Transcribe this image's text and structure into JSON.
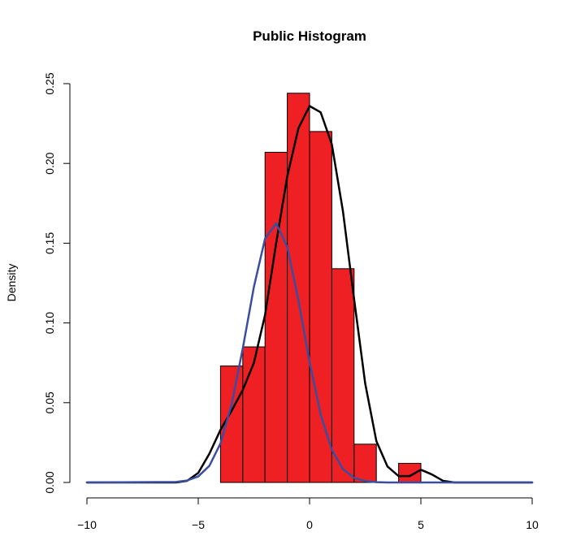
{
  "chart_data": {
    "type": "bar",
    "title": "Public Histogram",
    "xlabel": "",
    "ylabel": "Density",
    "xlim": [
      -10,
      10
    ],
    "ylim": [
      0,
      0.25
    ],
    "xticks": [
      -10,
      -5,
      0,
      5,
      10
    ],
    "xtick_labels": [
      "−10",
      "−5",
      "0",
      "5",
      "10"
    ],
    "yticks": [
      0.0,
      0.05,
      0.1,
      0.15,
      0.2,
      0.25
    ],
    "ytick_labels": [
      "0.00",
      "0.05",
      "0.10",
      "0.15",
      "0.20",
      "0.25"
    ],
    "grid": false,
    "bar_color": "#ee2024",
    "bar_edge_color": "#000000",
    "bins": [
      {
        "x0": -4,
        "x1": -3,
        "density": 0.073
      },
      {
        "x0": -3,
        "x1": -2,
        "density": 0.085
      },
      {
        "x0": -2,
        "x1": -1,
        "density": 0.207
      },
      {
        "x0": -1,
        "x1": 0,
        "density": 0.244
      },
      {
        "x0": 0,
        "x1": 1,
        "density": 0.22
      },
      {
        "x0": 1,
        "x1": 2,
        "density": 0.134
      },
      {
        "x0": 2,
        "x1": 3,
        "density": 0.024
      },
      {
        "x0": 3,
        "x1": 4,
        "density": 0.0
      },
      {
        "x0": 4,
        "x1": 5,
        "density": 0.012
      }
    ],
    "series": [
      {
        "type": "line",
        "color": "#000000",
        "x": [
          -10,
          -6,
          -5.5,
          -5,
          -4.5,
          -4,
          -3.5,
          -3,
          -2.5,
          -2,
          -1.5,
          -1,
          -0.5,
          0,
          0.5,
          1,
          1.5,
          2,
          2.5,
          3,
          3.5,
          4,
          4.5,
          5,
          5.5,
          6,
          6.5,
          10
        ],
        "y": [
          0,
          0.0,
          0.001,
          0.006,
          0.018,
          0.033,
          0.045,
          0.058,
          0.075,
          0.105,
          0.15,
          0.192,
          0.222,
          0.236,
          0.232,
          0.212,
          0.17,
          0.115,
          0.062,
          0.026,
          0.01,
          0.004,
          0.004,
          0.008,
          0.005,
          0.001,
          0.0,
          0
        ]
      },
      {
        "type": "line",
        "color": "#3a4ea0",
        "x": [
          -10,
          -6,
          -5.5,
          -5,
          -4.5,
          -4,
          -3.5,
          -3,
          -2.5,
          -2,
          -1.5,
          -1,
          -0.5,
          0,
          0.5,
          1,
          1.5,
          2,
          2.5,
          3,
          3.5,
          4,
          4.5,
          5,
          5.5,
          6,
          6.5,
          7,
          10
        ],
        "y": [
          0,
          0.0003,
          0.0012,
          0.0038,
          0.0104,
          0.0245,
          0.0491,
          0.084,
          0.1226,
          0.1528,
          0.1625,
          0.1475,
          0.1142,
          0.0755,
          0.0426,
          0.0205,
          0.0084,
          0.0029,
          0.0009,
          0.0002,
          0,
          0,
          0,
          0,
          0,
          0,
          0,
          0,
          0
        ]
      }
    ]
  }
}
